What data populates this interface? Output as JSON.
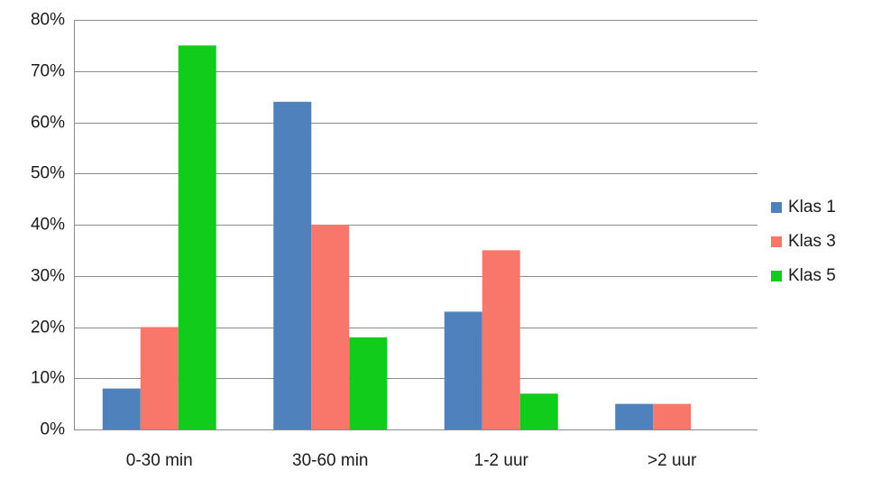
{
  "chart_data": {
    "type": "bar",
    "categories": [
      "0-30 min",
      "30-60 min",
      "1-2 uur",
      ">2 uur"
    ],
    "series": [
      {
        "name": "Klas 1",
        "color": "#4f81bd",
        "values": [
          8,
          64,
          23,
          5
        ]
      },
      {
        "name": "Klas 3",
        "color": "#f9766a",
        "values": [
          20,
          40,
          35,
          5
        ]
      },
      {
        "name": "Klas 5",
        "color": "#12cc1c",
        "values": [
          75,
          18,
          7,
          0
        ]
      }
    ],
    "ylim": [
      0,
      80
    ],
    "yticks": [
      0,
      10,
      20,
      30,
      40,
      50,
      60,
      70,
      80
    ],
    "ytick_labels": [
      "0%",
      "10%",
      "20%",
      "30%",
      "40%",
      "50%",
      "60%",
      "70%",
      "80%"
    ],
    "grid": true,
    "legend_position": "right"
  }
}
